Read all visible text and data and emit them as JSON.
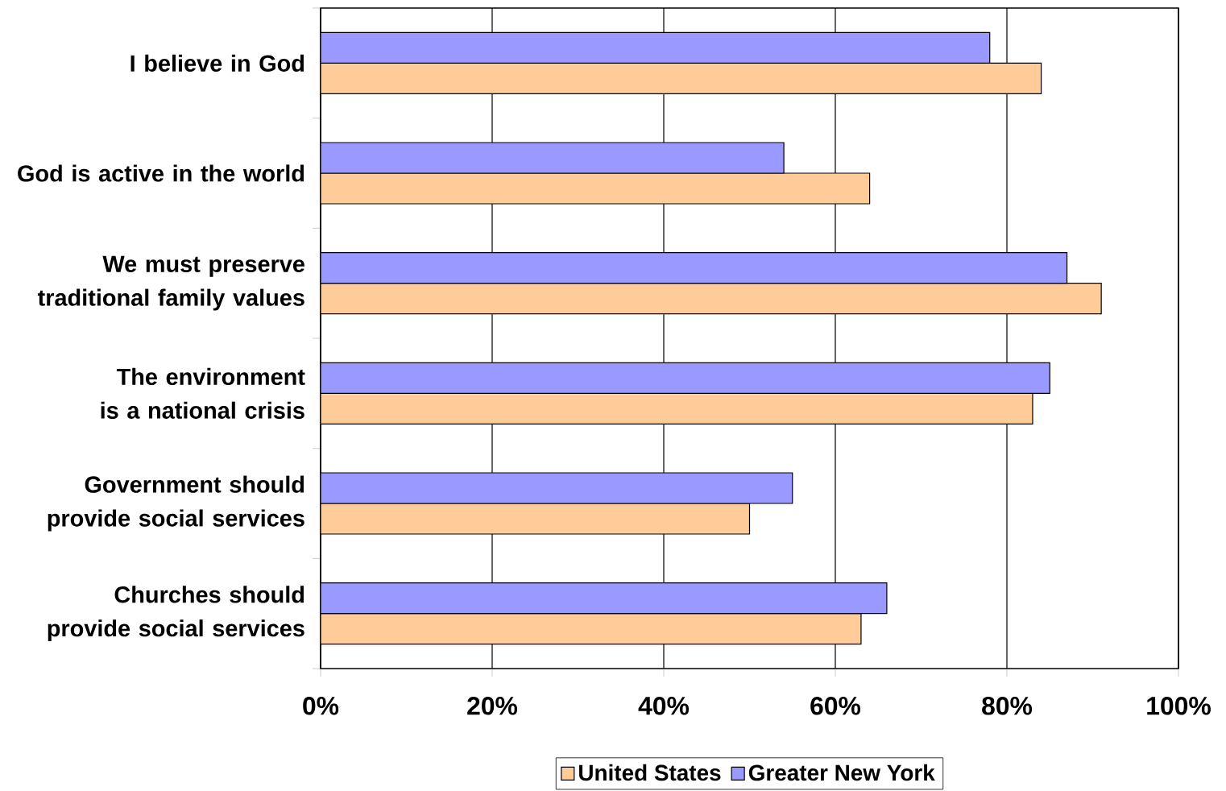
{
  "chart_data": {
    "type": "bar",
    "orientation": "horizontal",
    "categories": [
      "I believe in God",
      "God is active in the world",
      "We must preserve traditional family values",
      "The environment is a national crisis",
      "Government should provide social services",
      "Churches should provide social services"
    ],
    "series": [
      {
        "name": "United States",
        "color": "#ffcc99",
        "values": [
          84,
          64,
          91,
          83,
          50,
          63
        ]
      },
      {
        "name": "Greater New York",
        "color": "#9999ff",
        "values": [
          78,
          54,
          87,
          85,
          55,
          66
        ]
      }
    ],
    "xlim": [
      0,
      100
    ],
    "xticks": [
      {
        "value": 0,
        "label": "0%"
      },
      {
        "value": 20,
        "label": "20%"
      },
      {
        "value": 40,
        "label": "40%"
      },
      {
        "value": 60,
        "label": "60%"
      },
      {
        "value": 80,
        "label": "80%"
      },
      {
        "value": 100,
        "label": "100%"
      }
    ],
    "grid": "x",
    "legend": "bottom"
  }
}
